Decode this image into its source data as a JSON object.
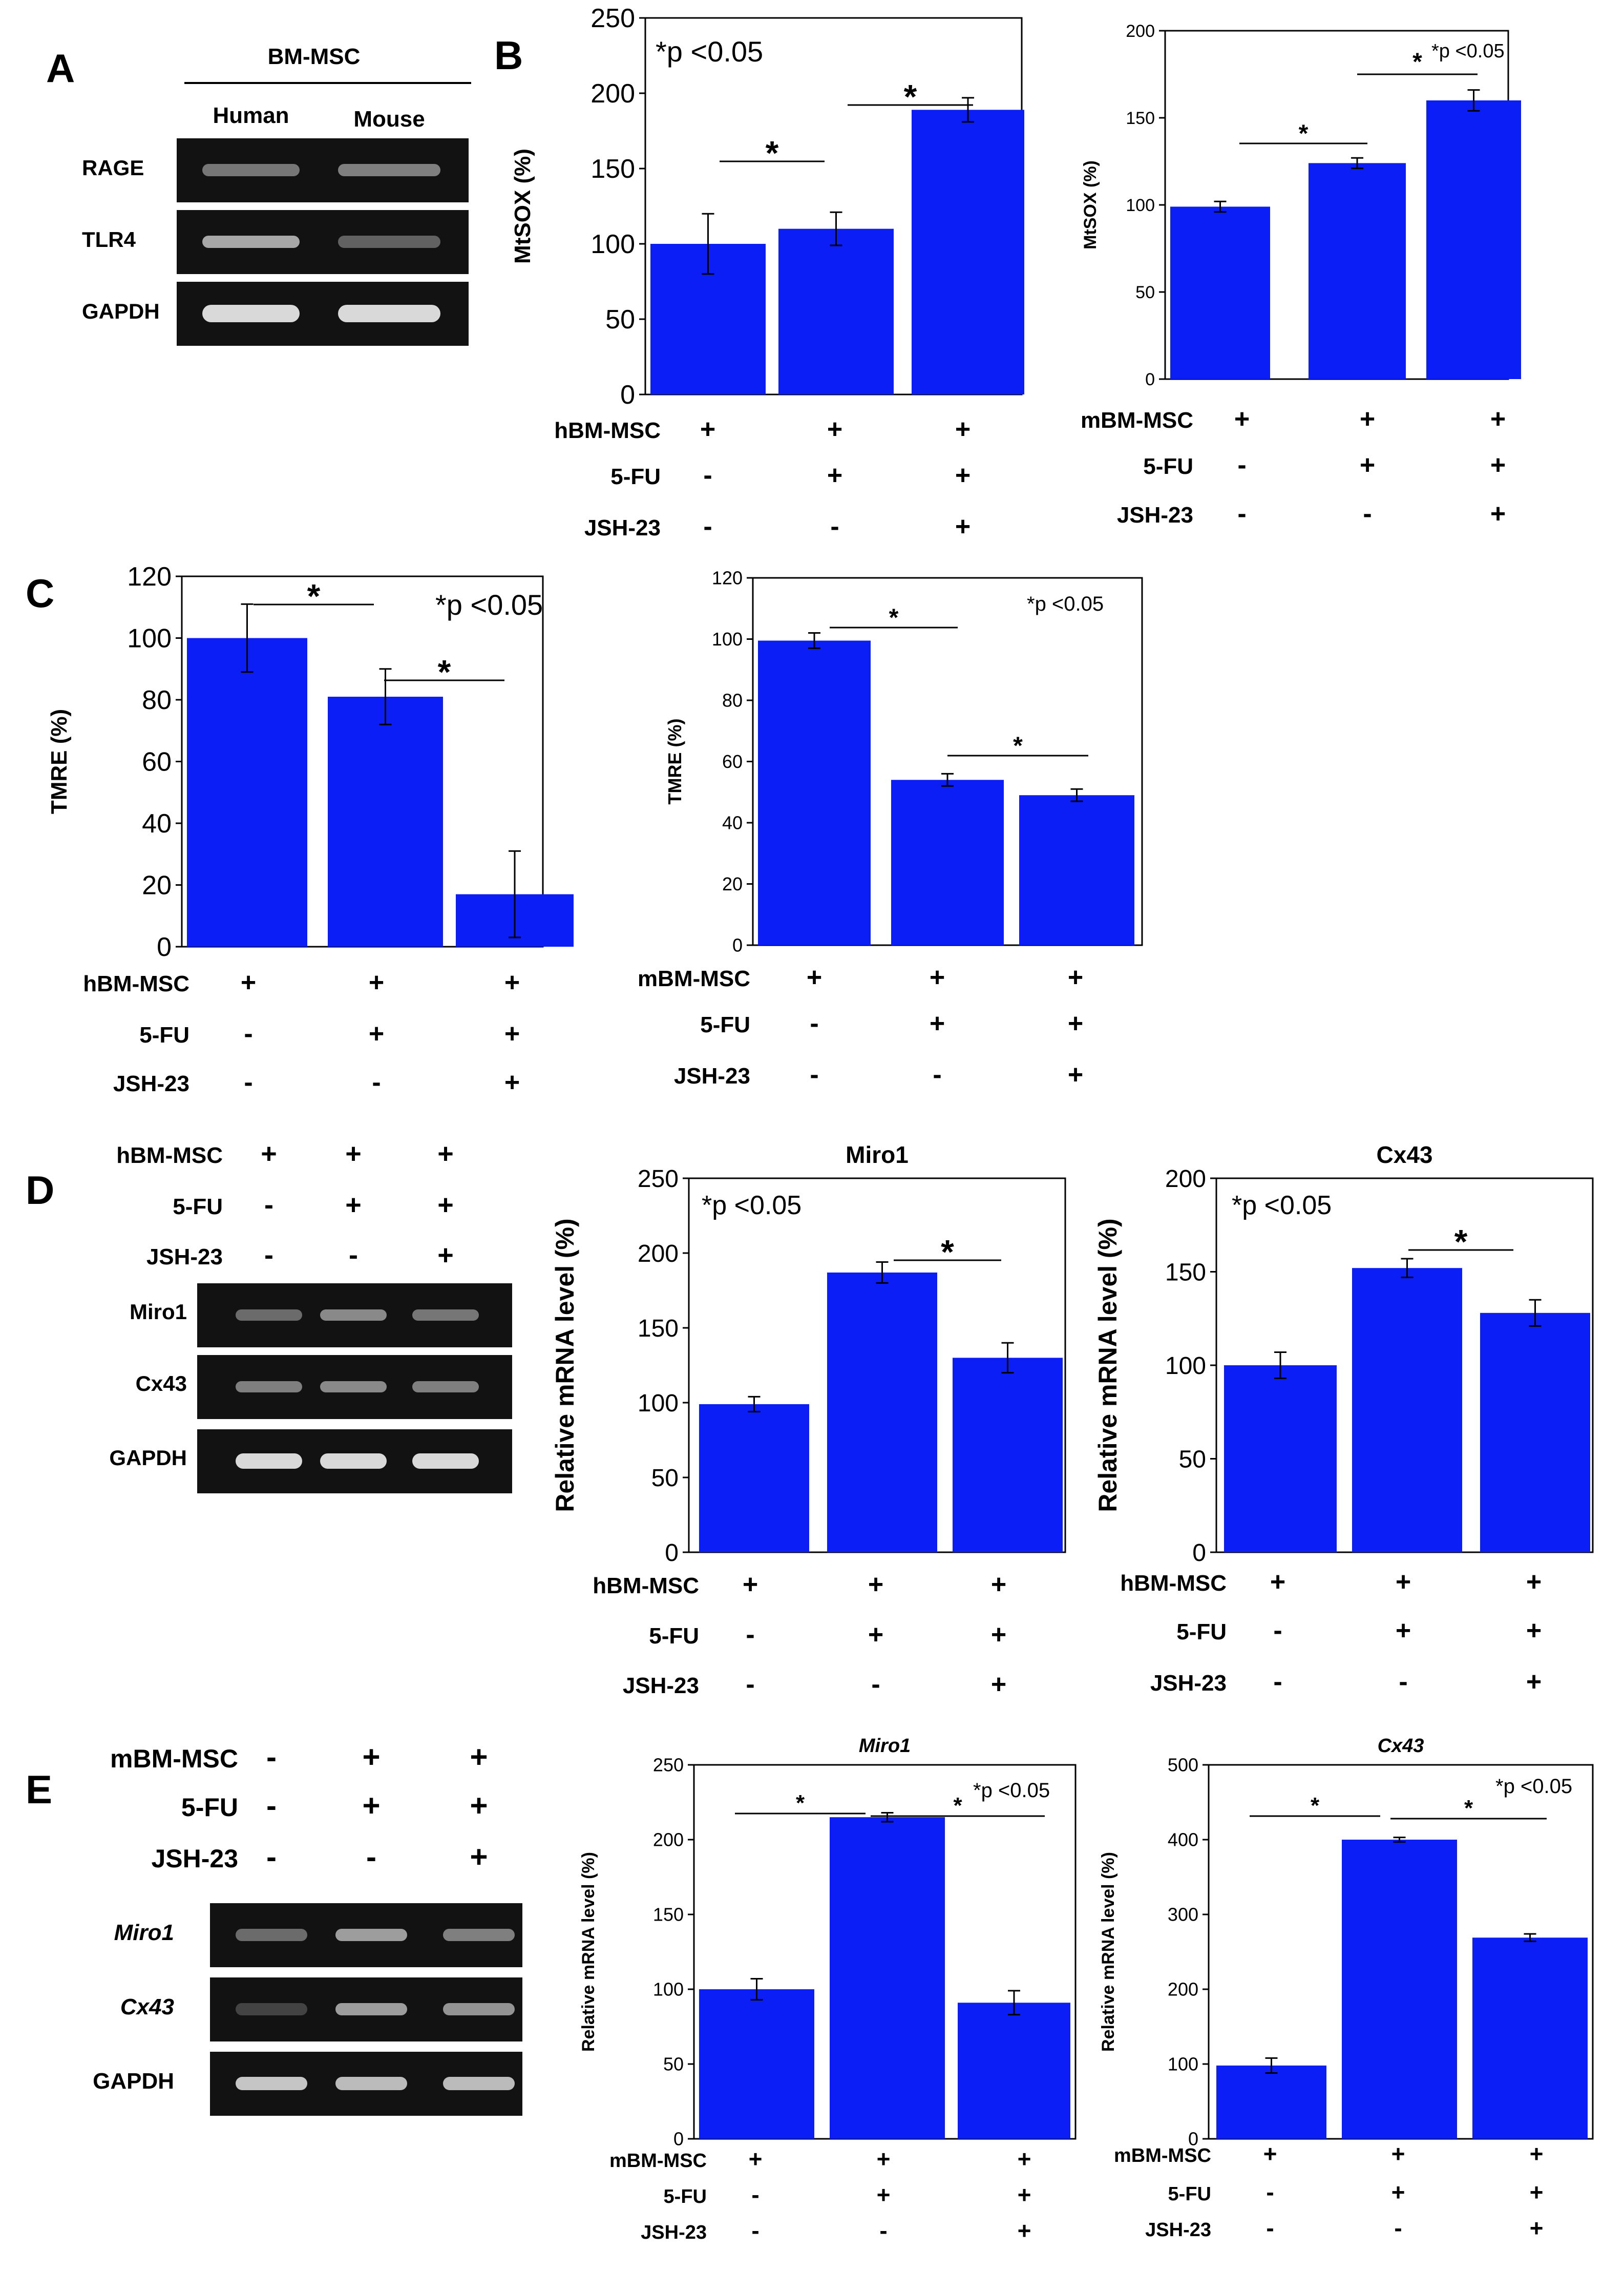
{
  "panel_letters": [
    "A",
    "B",
    "C",
    "D",
    "E"
  ],
  "panel_a": {
    "header": "BM-MSC",
    "columns": [
      "Human",
      "Mouse"
    ],
    "rows": [
      "RAGE",
      "TLR4",
      "GAPDH"
    ]
  },
  "panel_d_gel": {
    "conditions": [
      {
        "label": "hBM-MSC",
        "signs": [
          "+",
          "+",
          "+"
        ]
      },
      {
        "label": "5-FU",
        "signs": [
          "-",
          "+",
          "+"
        ]
      },
      {
        "label": "JSH-23",
        "signs": [
          "-",
          "-",
          "+"
        ]
      }
    ],
    "rows": [
      "Miro1",
      "Cx43",
      "GAPDH"
    ]
  },
  "panel_e_gel": {
    "conditions": [
      {
        "label": "mBM-MSC",
        "signs": [
          "-",
          "+",
          "+"
        ]
      },
      {
        "label": "5-FU",
        "signs": [
          "-",
          "+",
          "+"
        ]
      },
      {
        "label": "JSH-23",
        "signs": [
          "-",
          "-",
          "+"
        ]
      }
    ],
    "rows": [
      "Miro1",
      "Cx43",
      "GAPDH"
    ]
  },
  "colors": {
    "bar": "#0a1ef5",
    "gel_background": "#121212",
    "band": "#d9d9d9"
  },
  "chart_data": [
    {
      "id": "b-left",
      "type": "bar",
      "title": "",
      "xlabel": "",
      "ylabel": "MtSOX (%)",
      "ylim": [
        0,
        250
      ],
      "yticks": [
        0,
        50,
        100,
        150,
        200,
        250
      ],
      "values": [
        100,
        110,
        189
      ],
      "errors": [
        20,
        11,
        8
      ],
      "annotation": "*p <0.05",
      "significance": [
        {
          "from": 0,
          "to": 1,
          "label": "*"
        },
        {
          "from": 1,
          "to": 2,
          "label": "*"
        }
      ],
      "conditions": [
        {
          "label": "hBM-MSC",
          "signs": [
            "+",
            "+",
            "+"
          ]
        },
        {
          "label": "5-FU",
          "signs": [
            "-",
            "+",
            "+"
          ]
        },
        {
          "label": "JSH-23",
          "signs": [
            "-",
            "-",
            "+"
          ]
        }
      ]
    },
    {
      "id": "b-right",
      "type": "bar",
      "title": "",
      "xlabel": "",
      "ylabel": "MtSOX (%)",
      "ylim": [
        0,
        200
      ],
      "yticks": [
        0,
        50,
        100,
        150,
        200
      ],
      "values": [
        99,
        124,
        160
      ],
      "errors": [
        3,
        3,
        6
      ],
      "annotation": "*p <0.05",
      "significance": [
        {
          "from": 0,
          "to": 1,
          "label": "*"
        },
        {
          "from": 1,
          "to": 2,
          "label": "*"
        }
      ],
      "conditions": [
        {
          "label": "mBM-MSC",
          "signs": [
            "+",
            "+",
            "+"
          ]
        },
        {
          "label": "5-FU",
          "signs": [
            "-",
            "+",
            "+"
          ]
        },
        {
          "label": "JSH-23",
          "signs": [
            "-",
            "-",
            "+"
          ]
        }
      ]
    },
    {
      "id": "c-left",
      "type": "bar",
      "title": "",
      "xlabel": "",
      "ylabel": "TMRE (%)",
      "ylim": [
        0,
        120
      ],
      "yticks": [
        0,
        20,
        40,
        60,
        80,
        100,
        120
      ],
      "values": [
        100,
        81,
        17
      ],
      "errors": [
        11,
        9,
        14
      ],
      "annotation": "*p <0.05",
      "significance": [
        {
          "from": 0,
          "to": 1,
          "label": "*"
        },
        {
          "from": 1,
          "to": 2,
          "label": "*"
        }
      ],
      "conditions": [
        {
          "label": "hBM-MSC",
          "signs": [
            "+",
            "+",
            "+"
          ]
        },
        {
          "label": "5-FU",
          "signs": [
            "-",
            "+",
            "+"
          ]
        },
        {
          "label": "JSH-23",
          "signs": [
            "-",
            "-",
            "+"
          ]
        }
      ]
    },
    {
      "id": "c-right",
      "type": "bar",
      "title": "",
      "xlabel": "",
      "ylabel": "TMRE (%)",
      "ylim": [
        0,
        120
      ],
      "yticks": [
        0,
        20,
        40,
        60,
        80,
        100,
        120
      ],
      "values": [
        99.5,
        54,
        49
      ],
      "errors": [
        2.5,
        2,
        2
      ],
      "annotation": "*p <0.05",
      "significance": [
        {
          "from": 0,
          "to": 1,
          "label": "*"
        },
        {
          "from": 1,
          "to": 2,
          "label": "*"
        }
      ],
      "conditions": [
        {
          "label": "mBM-MSC",
          "signs": [
            "+",
            "+",
            "+"
          ]
        },
        {
          "label": "5-FU",
          "signs": [
            "-",
            "+",
            "+"
          ]
        },
        {
          "label": "JSH-23",
          "signs": [
            "-",
            "-",
            "+"
          ]
        }
      ]
    },
    {
      "id": "d-miro1",
      "type": "bar",
      "title": "Miro1",
      "xlabel": "",
      "ylabel": "Relative mRNA level (%)",
      "ylim": [
        0,
        250
      ],
      "yticks": [
        0,
        50,
        100,
        150,
        200,
        250
      ],
      "values": [
        99,
        187,
        130
      ],
      "errors": [
        5,
        7,
        10
      ],
      "annotation": "*p <0.05",
      "significance": [
        {
          "from": 1,
          "to": 2,
          "label": "*"
        }
      ],
      "conditions": [
        {
          "label": "hBM-MSC",
          "signs": [
            "+",
            "+",
            "+"
          ]
        },
        {
          "label": "5-FU",
          "signs": [
            "-",
            "+",
            "+"
          ]
        },
        {
          "label": "JSH-23",
          "signs": [
            "-",
            "-",
            "+"
          ]
        }
      ]
    },
    {
      "id": "d-cx43",
      "type": "bar",
      "title": "Cx43",
      "xlabel": "",
      "ylabel": "Relative mRNA level (%)",
      "ylim": [
        0,
        200
      ],
      "yticks": [
        0,
        50,
        100,
        150,
        200
      ],
      "values": [
        100,
        152,
        128
      ],
      "errors": [
        7,
        5,
        7
      ],
      "annotation": "*p <0.05",
      "significance": [
        {
          "from": 1,
          "to": 2,
          "label": "*"
        }
      ],
      "conditions": [
        {
          "label": "hBM-MSC",
          "signs": [
            "+",
            "+",
            "+"
          ]
        },
        {
          "label": "5-FU",
          "signs": [
            "-",
            "+",
            "+"
          ]
        },
        {
          "label": "JSH-23",
          "signs": [
            "-",
            "-",
            "+"
          ]
        }
      ]
    },
    {
      "id": "e-miro1",
      "type": "bar",
      "title": "Miro1",
      "xlabel": "",
      "ylabel": "Relative mRNA level (%)",
      "ylim": [
        0,
        250
      ],
      "yticks": [
        0,
        50,
        100,
        150,
        200,
        250
      ],
      "values": [
        100,
        215,
        91
      ],
      "errors": [
        7,
        3,
        8
      ],
      "annotation": "*p <0.05",
      "significance": [
        {
          "from": 0,
          "to": 1,
          "label": "*"
        },
        {
          "from": 1,
          "to": 2,
          "label": "*"
        }
      ],
      "conditions": [
        {
          "label": "mBM-MSC",
          "signs": [
            "+",
            "+",
            "+"
          ]
        },
        {
          "label": "5-FU",
          "signs": [
            "-",
            "+",
            "+"
          ]
        },
        {
          "label": "JSH-23",
          "signs": [
            "-",
            "-",
            "+"
          ]
        }
      ]
    },
    {
      "id": "e-cx43",
      "type": "bar",
      "title": "Cx43",
      "xlabel": "",
      "ylabel": "Relative mRNA level (%)",
      "ylim": [
        0,
        500
      ],
      "yticks": [
        0,
        100,
        200,
        300,
        400,
        500
      ],
      "values": [
        98,
        400,
        269
      ],
      "errors": [
        10,
        3,
        5
      ],
      "annotation": "*p <0.05",
      "significance": [
        {
          "from": 0,
          "to": 1,
          "label": "*"
        },
        {
          "from": 1,
          "to": 2,
          "label": "*"
        }
      ],
      "conditions": [
        {
          "label": "mBM-MSC",
          "signs": [
            "+",
            "+",
            "+"
          ]
        },
        {
          "label": "5-FU",
          "signs": [
            "-",
            "+",
            "+"
          ]
        },
        {
          "label": "JSH-23",
          "signs": [
            "-",
            "-",
            "+"
          ]
        }
      ]
    }
  ]
}
